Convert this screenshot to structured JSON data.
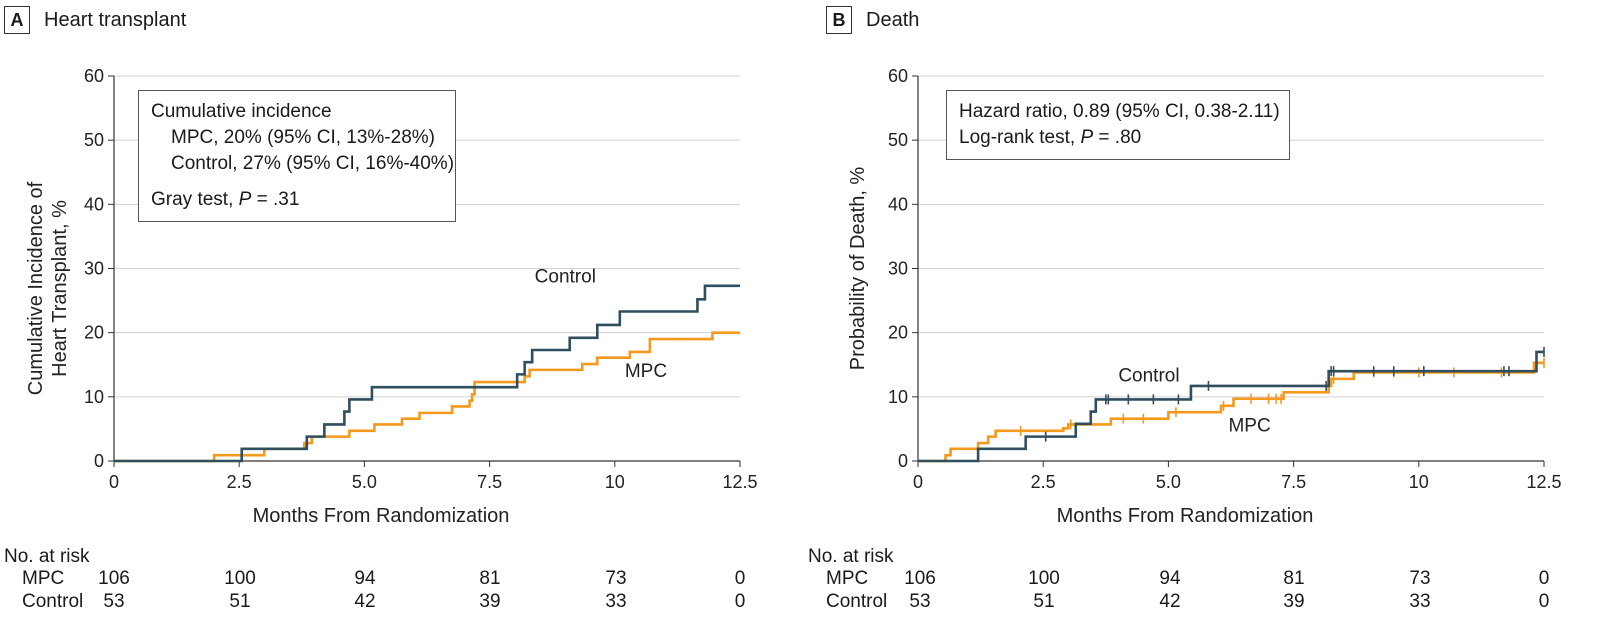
{
  "panels": [
    {
      "letter": "A",
      "title": "Heart transplant",
      "legend": {
        "heading": "Cumulative incidence",
        "mpc": "MPC, 20% (95% CI, 13%-28%)",
        "control": "Control, 27% (95% CI, 16%-40%)",
        "test_prefix": "Gray test, ",
        "test_p": "P",
        "test_suffix": " = .31"
      },
      "risk_table": {
        "title": "No. at risk",
        "rows": [
          {
            "label": "MPC",
            "values": [
              "106",
              "100",
              "94",
              "81",
              "73",
              "0"
            ]
          },
          {
            "label": "Control",
            "values": [
              "53",
              "51",
              "42",
              "39",
              "33",
              "0"
            ]
          }
        ]
      }
    },
    {
      "letter": "B",
      "title": "Death",
      "legend": {
        "line1": "Hazard ratio, 0.89 (95% CI, 0.38-2.11)",
        "test_prefix": "Log-rank test, ",
        "test_p": "P",
        "test_suffix": " = .80"
      },
      "risk_table": {
        "title": "No. at risk",
        "rows": [
          {
            "label": "MPC",
            "values": [
              "106",
              "100",
              "94",
              "81",
              "73",
              "0"
            ]
          },
          {
            "label": "Control",
            "values": [
              "53",
              "51",
              "42",
              "39",
              "33",
              "0"
            ]
          }
        ]
      }
    }
  ],
  "colors": {
    "control": "#2f4f5f",
    "mpc": "#f39a1e",
    "grid": "#d0d0d0",
    "axis": "#333333"
  },
  "chart_data": [
    {
      "type": "line",
      "step": true,
      "xlabel": "Months From Randomization",
      "ylabel": "Cumulative Incidence of Heart Transplant, %",
      "xlim": [
        0,
        12.5
      ],
      "ylim": [
        0,
        60
      ],
      "x_ticks": [
        "0",
        "2.5",
        "5.0",
        "7.5",
        "10",
        "12.5"
      ],
      "y_ticks": [
        "0",
        "10",
        "20",
        "30",
        "40",
        "50",
        "60"
      ],
      "grid": true,
      "series_labels": {
        "control": "Control",
        "mpc": "MPC"
      },
      "series": [
        {
          "name": "Control",
          "color": "#2f4f5f",
          "x": [
            0,
            2.55,
            3.0,
            3.85,
            4.2,
            4.6,
            4.7,
            5.15,
            8.05,
            8.2,
            8.25,
            8.35,
            9.1,
            9.65,
            10.1,
            11.65,
            11.8,
            12.5
          ],
          "y": [
            0,
            1.9,
            1.9,
            3.8,
            5.7,
            7.7,
            9.6,
            11.5,
            13.5,
            15.4,
            15.4,
            17.3,
            19.2,
            21.2,
            23.3,
            25.2,
            27.3,
            27.3
          ]
        },
        {
          "name": "MPC",
          "color": "#f39a1e",
          "x": [
            0,
            2.0,
            3.0,
            3.8,
            3.95,
            4.7,
            5.2,
            5.75,
            6.1,
            6.75,
            7.1,
            7.15,
            7.2,
            8.2,
            8.3,
            9.35,
            9.65,
            10.3,
            10.7,
            11.95,
            12.5
          ],
          "y": [
            0,
            0.9,
            1.9,
            2.8,
            3.8,
            4.7,
            5.7,
            6.6,
            7.5,
            8.5,
            9.4,
            10.4,
            12.3,
            13.2,
            14.2,
            15.1,
            16.1,
            17.0,
            19.0,
            20.0,
            20.0
          ]
        }
      ]
    },
    {
      "type": "line",
      "step": true,
      "xlabel": "Months From Randomization",
      "ylabel": "Probability of Death, %",
      "xlim": [
        0,
        12.5
      ],
      "ylim": [
        0,
        60
      ],
      "x_ticks": [
        "0",
        "2.5",
        "5.0",
        "7.5",
        "10",
        "12.5"
      ],
      "y_ticks": [
        "0",
        "10",
        "20",
        "30",
        "40",
        "50",
        "60"
      ],
      "grid": true,
      "series_labels": {
        "control": "Control",
        "mpc": "MPC"
      },
      "series": [
        {
          "name": "Control",
          "color": "#2f4f5f",
          "x": [
            0,
            1.2,
            2.15,
            3.15,
            3.45,
            3.55,
            5.45,
            8.2,
            12.35,
            12.5
          ],
          "y": [
            0,
            1.9,
            3.8,
            5.8,
            7.7,
            9.6,
            11.7,
            14.0,
            17.0,
            17.0
          ],
          "censor_x": [
            2.55,
            3.75,
            3.8,
            4.2,
            4.7,
            5.2,
            5.8,
            8.15,
            8.25,
            8.3,
            9.1,
            9.5,
            10.1,
            11.7,
            11.8,
            12.5
          ]
        },
        {
          "name": "MPC",
          "color": "#f39a1e",
          "x": [
            0,
            0.55,
            0.65,
            1.2,
            1.4,
            1.55,
            2.9,
            3.0,
            3.85,
            5.0,
            6.05,
            6.3,
            7.3,
            8.2,
            8.25,
            8.7,
            12.3,
            12.5
          ],
          "y": [
            0,
            0.9,
            1.9,
            2.8,
            3.8,
            4.7,
            5.1,
            5.7,
            6.6,
            7.6,
            8.6,
            9.7,
            10.7,
            11.7,
            12.8,
            13.8,
            15.3,
            15.3
          ],
          "censor_x": [
            2.05,
            3.05,
            4.1,
            4.5,
            5.15,
            6.1,
            6.65,
            7.0,
            7.15,
            7.25,
            8.3,
            9.1,
            9.5,
            10.0,
            10.7,
            11.65,
            12.5
          ]
        }
      ]
    }
  ]
}
